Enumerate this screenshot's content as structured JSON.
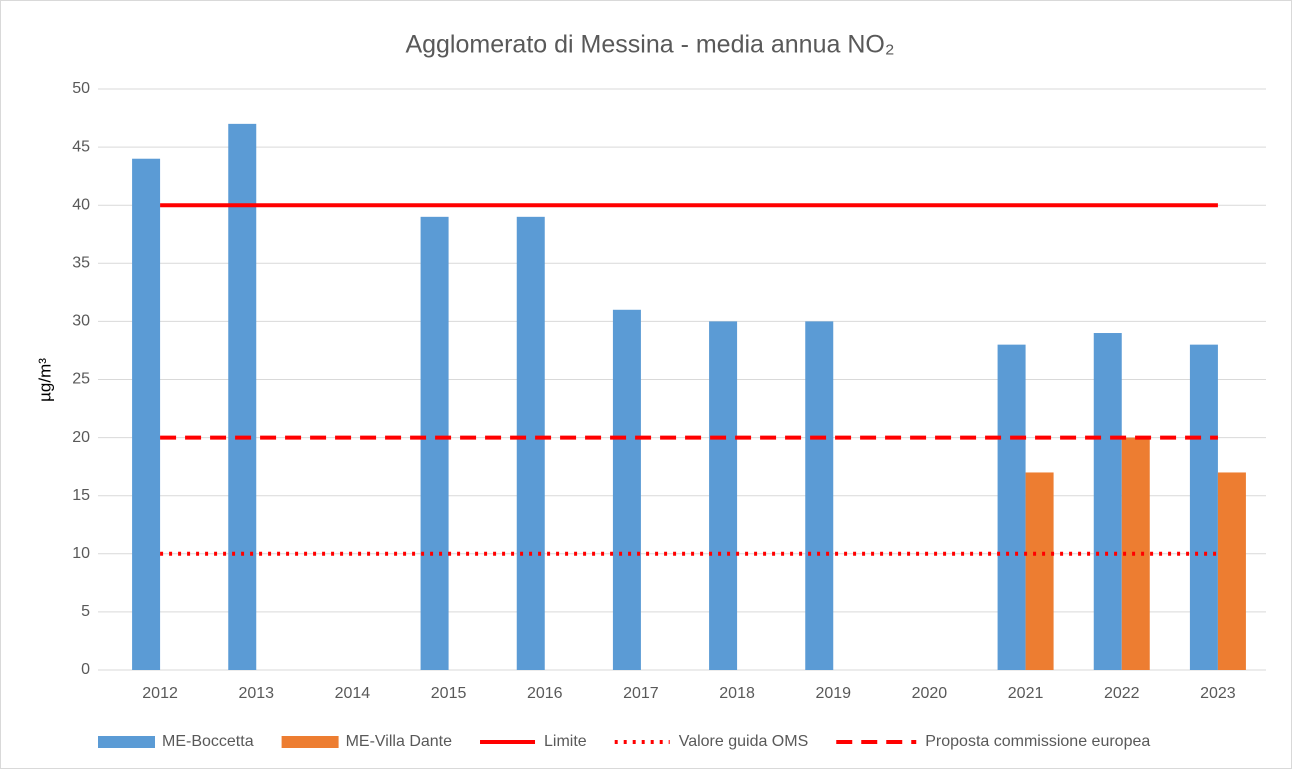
{
  "chart_data": {
    "type": "bar",
    "title": "Agglomerato di Messina - media annua NO₂",
    "y_label": "µg/m³",
    "categories": [
      "2012",
      "2013",
      "2014",
      "2015",
      "2016",
      "2017",
      "2018",
      "2019",
      "2020",
      "2021",
      "2022",
      "2023"
    ],
    "series": [
      {
        "name": "ME-Boccetta",
        "color": "#5b9bd5",
        "type": "bar",
        "values": [
          44,
          47,
          null,
          39,
          39,
          31,
          30,
          30,
          null,
          28,
          29,
          28
        ]
      },
      {
        "name": "ME-Villa Dante",
        "color": "#ed7d31",
        "type": "bar",
        "values": [
          null,
          null,
          null,
          null,
          null,
          null,
          null,
          null,
          null,
          17,
          20,
          17
        ]
      },
      {
        "name": "Limite",
        "color": "#ff0000",
        "type": "line",
        "dash": "solid",
        "values": [
          40,
          40,
          40,
          40,
          40,
          40,
          40,
          40,
          40,
          40,
          40,
          40
        ]
      },
      {
        "name": "Valore guida OMS",
        "color": "#ff0000",
        "type": "line",
        "dash": "dotted",
        "values": [
          10,
          10,
          10,
          10,
          10,
          10,
          10,
          10,
          10,
          10,
          10,
          10
        ]
      },
      {
        "name": "Proposta commissione europea",
        "color": "#ff0000",
        "type": "line",
        "dash": "dashed",
        "values": [
          20,
          20,
          20,
          20,
          20,
          20,
          20,
          20,
          20,
          20,
          20,
          20
        ]
      }
    ],
    "ylim": [
      0,
      50
    ],
    "yticks": [
      0,
      5,
      10,
      15,
      20,
      25,
      30,
      35,
      40,
      45,
      50
    ],
    "grid": true,
    "legend": "bottom"
  }
}
